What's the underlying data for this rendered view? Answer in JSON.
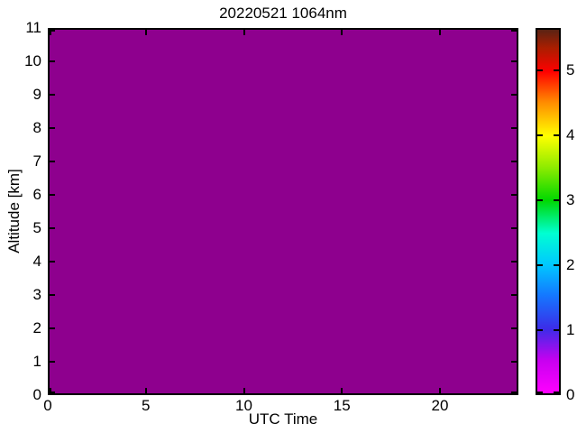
{
  "figure": {
    "background_color": "#FFFFFF",
    "frame_color": "#000000"
  },
  "chart_data": {
    "type": "heatmap",
    "title": "20220521 1064nm",
    "xlabel": "UTC Time",
    "ylabel": "Altitude [km]",
    "x_range": [
      0,
      24
    ],
    "y_range": [
      0,
      11
    ],
    "x_ticks": [
      0,
      5,
      10,
      15,
      20
    ],
    "y_ticks": [
      0,
      1,
      2,
      3,
      4,
      5,
      6,
      7,
      8,
      9,
      10,
      11
    ],
    "uniform_value": 0,
    "fill_color": "#8E008E",
    "grid": false,
    "colorbar": {
      "position": "right",
      "range": [
        0,
        5.65
      ],
      "ticks": [
        0,
        1,
        2,
        3,
        4,
        5
      ],
      "gradient_stops": [
        {
          "pos": 0.0,
          "color": "#FF00FF"
        },
        {
          "pos": 0.09,
          "color": "#C800F0"
        },
        {
          "pos": 0.177,
          "color": "#3C2CE8"
        },
        {
          "pos": 0.27,
          "color": "#1478FF"
        },
        {
          "pos": 0.354,
          "color": "#00C8FF"
        },
        {
          "pos": 0.44,
          "color": "#00FFD2"
        },
        {
          "pos": 0.531,
          "color": "#00D800"
        },
        {
          "pos": 0.62,
          "color": "#8CEB00"
        },
        {
          "pos": 0.708,
          "color": "#FFFF00"
        },
        {
          "pos": 0.8,
          "color": "#FF8C00"
        },
        {
          "pos": 0.885,
          "color": "#FF0000"
        },
        {
          "pos": 0.95,
          "color": "#AA1E00"
        },
        {
          "pos": 1.0,
          "color": "#5A2314"
        }
      ]
    }
  }
}
